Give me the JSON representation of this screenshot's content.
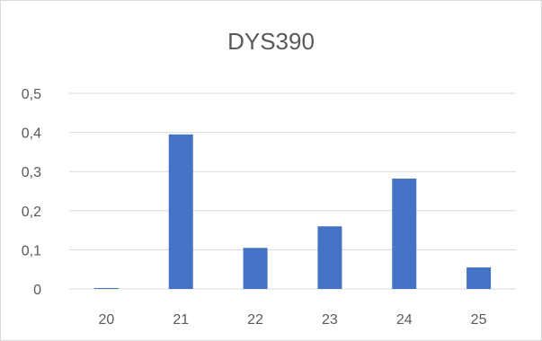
{
  "chart_data": {
    "type": "bar",
    "title": "DYS390",
    "categories": [
      "20",
      "21",
      "22",
      "23",
      "24",
      "25"
    ],
    "values": [
      0.002,
      0.395,
      0.105,
      0.16,
      0.282,
      0.055
    ],
    "ylim": [
      0,
      0.5
    ],
    "y_ticks": [
      "0",
      "0,1",
      "0,2",
      "0,3",
      "0,4",
      "0,5"
    ],
    "grid": true,
    "legend": "none",
    "bar_color": "#4472C4",
    "grid_color": "#d9d9d9",
    "text_color": "#595959"
  }
}
